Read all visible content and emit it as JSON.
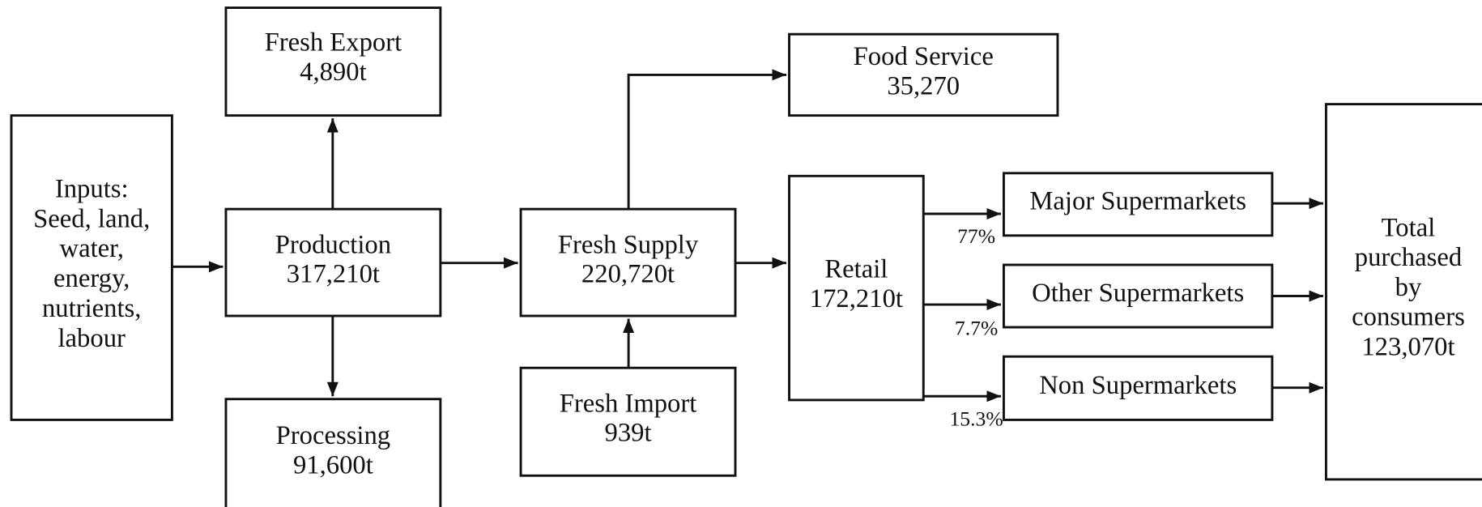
{
  "nodes": [
    {
      "lines": [
        "Inputs:",
        "Seed, land,",
        "water,",
        "energy,",
        "nutrients,",
        "labour"
      ]
    },
    {
      "lines": [
        "Fresh Export",
        "4,890t"
      ]
    },
    {
      "lines": [
        "Production",
        "317,210t"
      ]
    },
    {
      "lines": [
        "Processing",
        "91,600t"
      ]
    },
    {
      "lines": [
        "Fresh Supply",
        "220,720t"
      ]
    },
    {
      "lines": [
        "Fresh Import",
        "939t"
      ]
    },
    {
      "lines": [
        "Food Service",
        "35,270"
      ]
    },
    {
      "lines": [
        "Retail",
        "172,210t"
      ]
    },
    {
      "lines": [
        "Major Supermarkets"
      ]
    },
    {
      "lines": [
        "Other Supermarkets"
      ]
    },
    {
      "lines": [
        "Non Supermarkets"
      ]
    },
    {
      "lines": [
        "Total",
        "purchased",
        "by",
        "consumers",
        "123,070t"
      ]
    }
  ],
  "edge_labels": [
    "77%",
    "7.7%",
    "15.3%"
  ]
}
